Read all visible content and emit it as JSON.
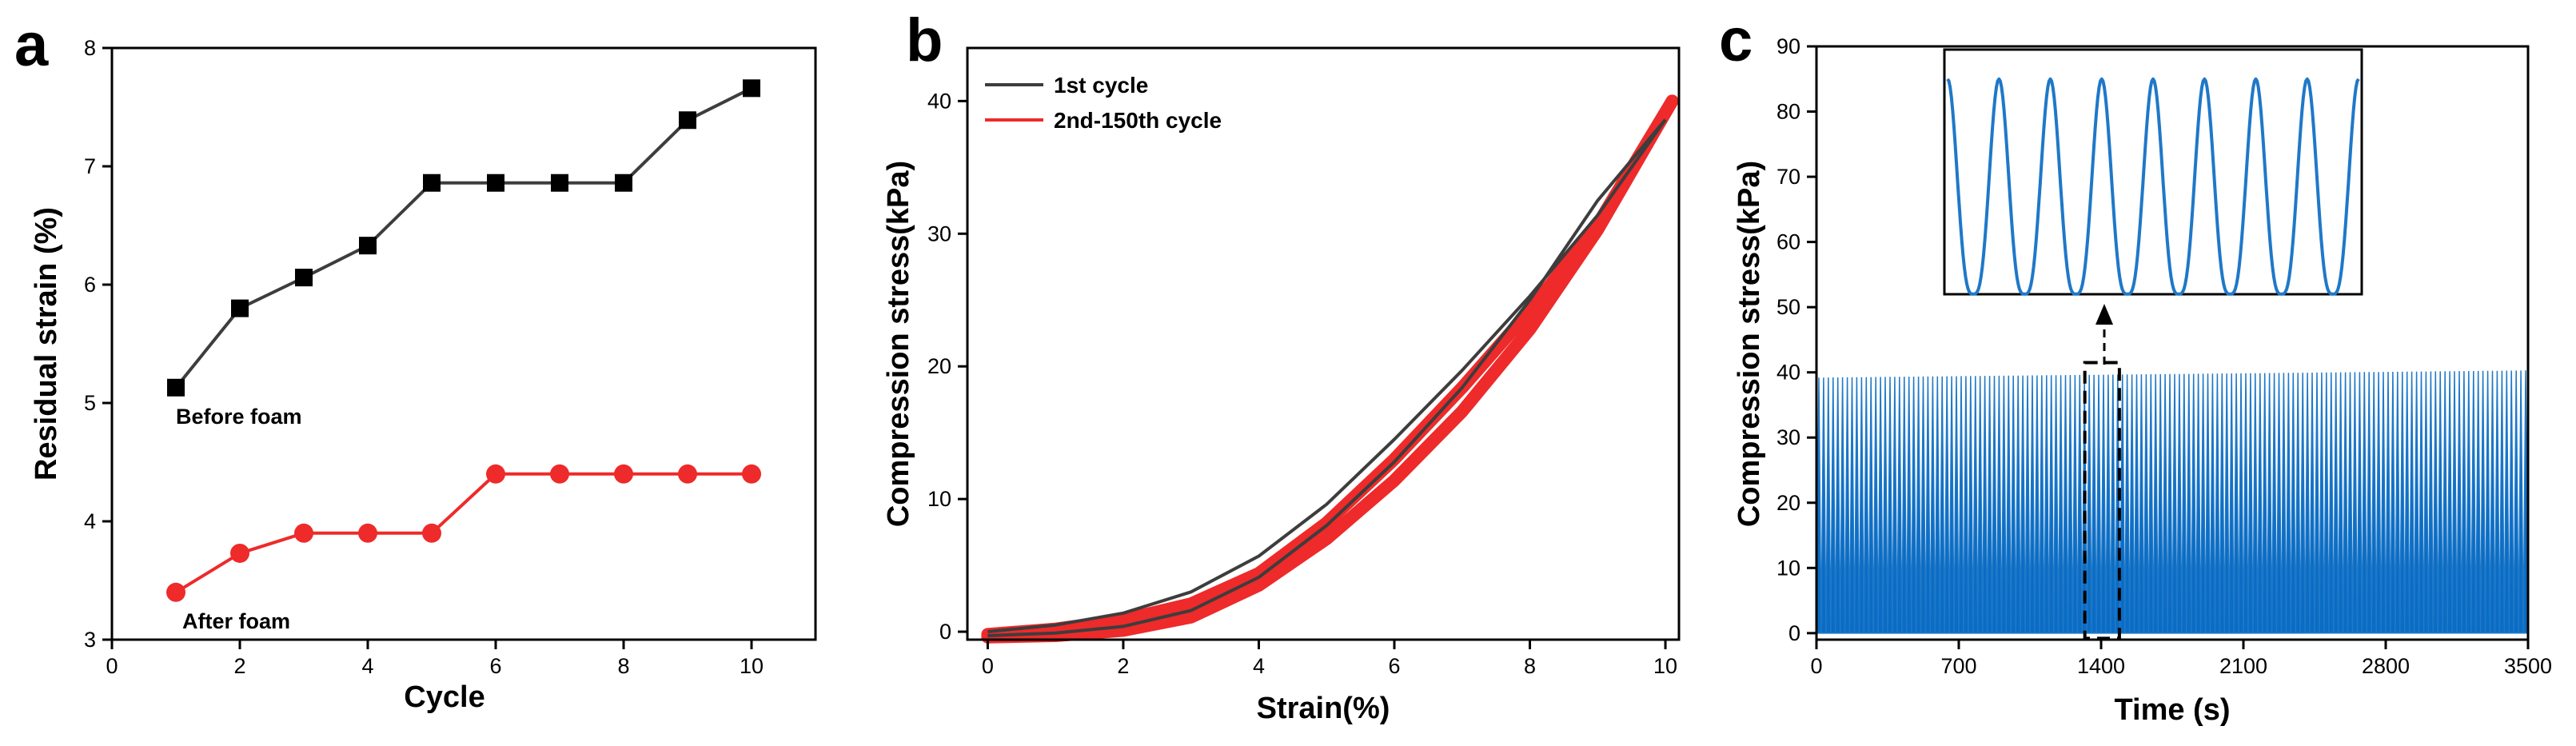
{
  "colors": {
    "axis": "#000000",
    "series_dark": "#3d3d3d",
    "series_red": "#ee2a2a",
    "fill_blue": "#0a6cc4",
    "line_blue": "#1f78c8"
  },
  "chart_data": [
    {
      "panel": "a",
      "type": "line",
      "xlabel": "Cycle",
      "ylabel": "Residual strain (%)",
      "xlim": [
        0,
        11
      ],
      "ylim": [
        3,
        8
      ],
      "xticks": [
        "0",
        "2",
        "4",
        "6",
        "8",
        "10"
      ],
      "yticks": [
        "3",
        "4",
        "5",
        "6",
        "7",
        "8"
      ],
      "series": [
        {
          "name": "Before foam",
          "marker": "square",
          "x": [
            1,
            2,
            3,
            4,
            5,
            6,
            7,
            8,
            9,
            10
          ],
          "values": [
            5.13,
            5.8,
            6.06,
            6.33,
            6.86,
            6.86,
            6.86,
            6.86,
            7.39,
            7.66
          ]
        },
        {
          "name": "After foam",
          "marker": "circle",
          "x": [
            1,
            2,
            3,
            4,
            5,
            6,
            7,
            8,
            9,
            10
          ],
          "values": [
            3.4,
            3.73,
            3.9,
            3.9,
            3.9,
            4.4,
            4.4,
            4.4,
            4.4,
            4.4
          ]
        }
      ]
    },
    {
      "panel": "b",
      "type": "line",
      "xlabel": "Strain(%)",
      "ylabel": "Compression stress(kPa)",
      "xlim": [
        -0.3,
        10.2
      ],
      "ylim": [
        -0.6,
        44
      ],
      "xticks": [
        "0",
        "2",
        "4",
        "6",
        "8",
        "10"
      ],
      "yticks": [
        "0",
        "10",
        "20",
        "30",
        "40"
      ],
      "legend": [
        "1st cycle",
        "2nd-150th cycle"
      ],
      "series": [
        {
          "name": "1st cycle",
          "loading": {
            "x": [
              0,
              1,
              2,
              3,
              4,
              5,
              6,
              7,
              8,
              9,
              10
            ],
            "values": [
              0,
              0.5,
              1.4,
              3.0,
              5.7,
              9.6,
              14.5,
              19.7,
              25.3,
              31.4,
              38.6
            ]
          },
          "unloading": {
            "x": [
              10,
              9,
              8,
              7,
              6,
              5,
              4,
              3,
              2,
              1,
              0
            ],
            "values": [
              38.6,
              32.5,
              25.0,
              18.4,
              12.8,
              8.0,
              4.1,
              1.6,
              0.4,
              -0.1,
              -0.3
            ]
          }
        },
        {
          "name": "2nd-150th cycle",
          "loading": {
            "x": [
              0,
              1,
              2,
              3,
              4,
              5,
              6,
              7,
              8,
              9,
              10.1
            ],
            "values": [
              -0.2,
              0.2,
              0.9,
              2.1,
              4.4,
              8.2,
              13.0,
              18.4,
              24.2,
              30.7,
              40.0
            ]
          },
          "unloading": {
            "x": [
              10.1,
              9,
              8,
              7,
              6,
              5,
              4,
              3,
              2,
              1,
              0
            ],
            "values": [
              40.0,
              30.3,
              22.8,
              16.6,
              11.4,
              7.0,
              3.5,
              1.1,
              0.1,
              -0.3,
              -0.4
            ]
          }
        }
      ]
    },
    {
      "panel": "c",
      "type": "area",
      "xlabel": "Time (s)",
      "ylabel": "Compression stress(kPa)",
      "xlim": [
        0,
        3500
      ],
      "ylim": [
        -1,
        90
      ],
      "xticks": [
        "0",
        "700",
        "1400",
        "2100",
        "2800",
        "3500"
      ],
      "yticks": [
        "0",
        "10",
        "20",
        "30",
        "40",
        "50",
        "60",
        "70",
        "80",
        "90"
      ],
      "series": [
        {
          "name": "",
          "cycles": 150,
          "min": 0,
          "max_start": 39.2,
          "max_end": 40.3
        }
      ],
      "highlight_window_x": [
        1320,
        1490
      ],
      "inset": {
        "cycles_shown": 8,
        "peak": 85,
        "trough": 52
      }
    }
  ],
  "panels": {
    "a": {
      "letter": "a",
      "label_before": "Before foam",
      "label_after": "After foam"
    },
    "b": {
      "letter": "b"
    },
    "c": {
      "letter": "c"
    }
  }
}
